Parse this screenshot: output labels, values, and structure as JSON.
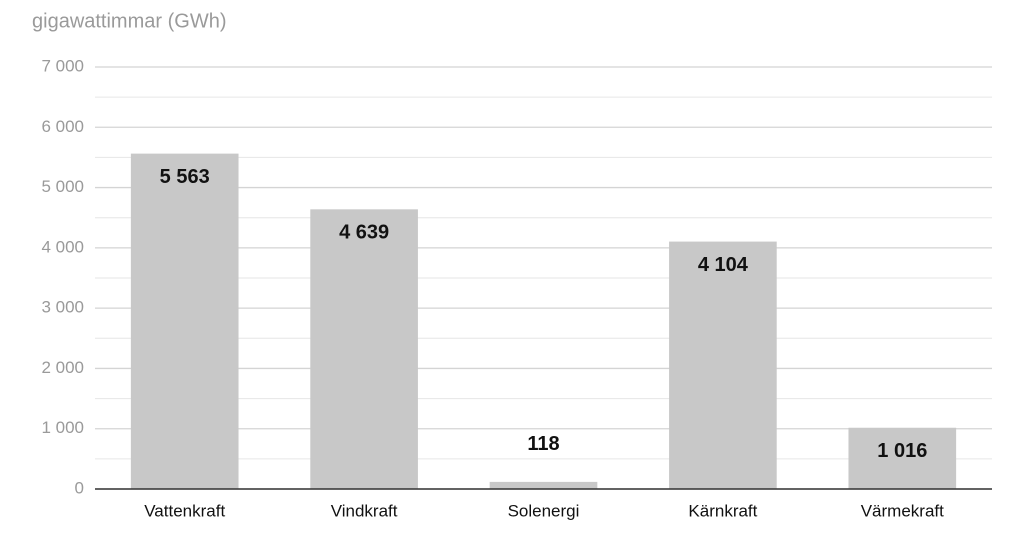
{
  "chart_data": {
    "type": "bar",
    "y_label": "gigawattimmar (GWh)",
    "categories": [
      "Vattenkraft",
      "Vindkraft",
      "Solenergi",
      "Kärnkraft",
      "Värmekraft"
    ],
    "values": [
      5563,
      4639,
      118,
      4104,
      1016
    ],
    "value_labels": [
      "5 563",
      "4 639",
      "118",
      "4 104",
      "1 016"
    ],
    "color": "#c8c8c8",
    "ylim": [
      0,
      7000
    ],
    "yticks": [
      0,
      {
        "value": 1000,
        "label": "1 000"
      },
      {
        "value": 2000,
        "label": "2 000"
      },
      {
        "value": 3000,
        "label": "3 000"
      },
      {
        "value": 4000,
        "label": "4 000"
      },
      {
        "value": 5000,
        "label": "5 000"
      },
      {
        "value": 6000,
        "label": "6 000"
      },
      {
        "value": 7000,
        "label": "7 000"
      }
    ],
    "minor_yticks": [
      500,
      1500,
      2500,
      3500,
      4500,
      5500,
      6500
    ],
    "grid": true
  }
}
